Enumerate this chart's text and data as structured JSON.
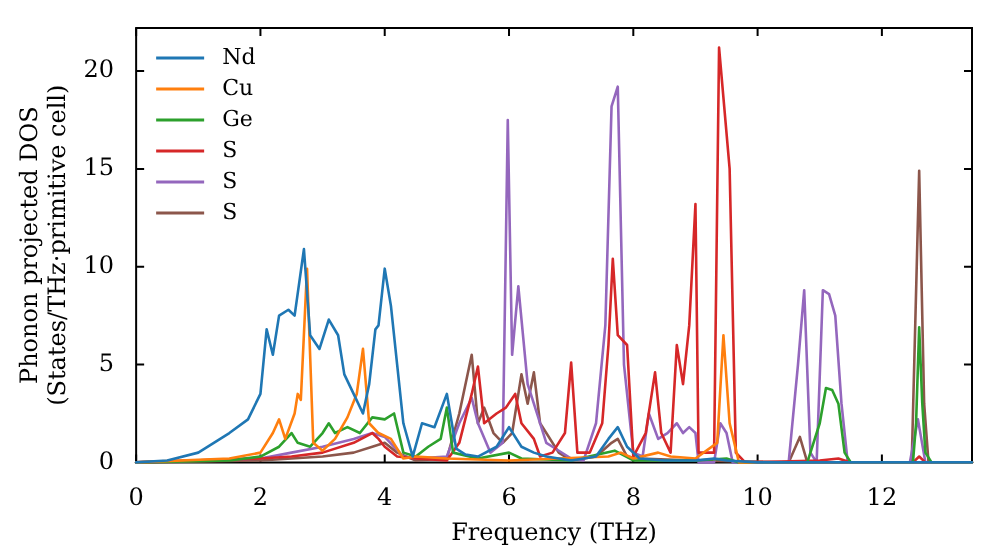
{
  "chart_data": {
    "type": "line",
    "xlabel": "Frequency (THz)",
    "ylabel": "Phonon projected DOS\n(States/THz·primitive cell)",
    "xlim": [
      0,
      13.45
    ],
    "ylim": [
      0,
      22.2
    ],
    "xticks": [
      0,
      2,
      4,
      6,
      8,
      10,
      12
    ],
    "yticks": [
      0,
      5,
      10,
      15,
      20
    ],
    "grid": false,
    "legend": "top left",
    "marker": "none",
    "line_style": "solid",
    "series": [
      {
        "name": "Nd",
        "color": "#1f77b4",
        "x": [
          0,
          0.5,
          1.0,
          1.5,
          1.8,
          2.0,
          2.1,
          2.2,
          2.3,
          2.45,
          2.55,
          2.7,
          2.8,
          2.95,
          3.1,
          3.25,
          3.35,
          3.5,
          3.65,
          3.75,
          3.85,
          3.9,
          4.0,
          4.1,
          4.2,
          4.3,
          4.45,
          4.6,
          4.8,
          5.0,
          5.15,
          5.3,
          5.5,
          5.8,
          6.0,
          6.2,
          6.4,
          6.6,
          6.8,
          7.0,
          7.4,
          7.6,
          7.75,
          7.9,
          8.1,
          8.5,
          9.0,
          9.3,
          9.5,
          10,
          13.45
        ],
        "values": [
          0,
          0.1,
          0.5,
          1.5,
          2.2,
          3.5,
          6.8,
          5.5,
          7.5,
          7.8,
          7.5,
          10.9,
          6.5,
          5.8,
          7.3,
          6.5,
          4.5,
          3.5,
          2.5,
          4,
          6.8,
          7,
          9.9,
          8,
          5,
          2,
          0.3,
          2,
          1.8,
          3.5,
          0.7,
          0.4,
          0.3,
          0.8,
          1.8,
          0.8,
          0.5,
          0.3,
          0.2,
          0.1,
          0.3,
          1.2,
          1.8,
          0.8,
          0.2,
          0.1,
          0.1,
          0.2,
          0.1,
          0,
          0
        ]
      },
      {
        "name": "Cu",
        "color": "#ff7f0e",
        "x": [
          0,
          1.5,
          2.0,
          2.2,
          2.3,
          2.4,
          2.55,
          2.6,
          2.65,
          2.75,
          2.85,
          3.0,
          3.2,
          3.4,
          3.55,
          3.65,
          3.75,
          3.9,
          4.1,
          4.3,
          4.5,
          5,
          6,
          7.6,
          7.8,
          8,
          8.4,
          8.6,
          9.0,
          9.35,
          9.45,
          9.55,
          9.7,
          13.45
        ],
        "values": [
          0,
          0.2,
          0.5,
          1.5,
          2.2,
          1.2,
          2.5,
          3.5,
          3.2,
          9.9,
          1,
          0.6,
          1.2,
          2.3,
          3.5,
          5.8,
          2,
          1.5,
          1.2,
          0.2,
          0.3,
          0.2,
          0.1,
          0.3,
          0.5,
          0.2,
          0.5,
          0.3,
          0.2,
          1,
          6.5,
          2,
          0,
          0
        ]
      },
      {
        "name": "Ge",
        "color": "#2ca02c",
        "x": [
          0,
          1.5,
          2.0,
          2.3,
          2.5,
          2.6,
          2.8,
          3.0,
          3.1,
          3.2,
          3.4,
          3.6,
          3.8,
          4.0,
          4.15,
          4.3,
          4.5,
          4.7,
          4.9,
          5.0,
          5.1,
          5.5,
          6,
          6.2,
          7,
          7.7,
          8,
          9,
          9.5,
          9.7,
          10.8,
          11.0,
          11.1,
          11.2,
          11.3,
          11.4,
          11.5,
          12.5,
          12.55,
          12.6,
          12.65,
          12.7,
          12.8,
          13.45
        ],
        "values": [
          0,
          0.1,
          0.3,
          0.8,
          1.5,
          1,
          0.8,
          1.5,
          2,
          1.5,
          1.8,
          1.5,
          2.3,
          2.2,
          2.5,
          0.5,
          0.3,
          0.8,
          1.2,
          2.8,
          0.5,
          0.2,
          0.5,
          0.2,
          0.1,
          0.6,
          0.1,
          0.1,
          0.2,
          0,
          0,
          2,
          3.8,
          3.7,
          3,
          0.5,
          0,
          0,
          2,
          6.9,
          3,
          0.5,
          0,
          0
        ]
      },
      {
        "name": "S",
        "color": "#d62728",
        "x": [
          0,
          2,
          2.5,
          3.0,
          3.5,
          3.8,
          3.9,
          4.0,
          4.2,
          4.5,
          5.0,
          5.2,
          5.4,
          5.5,
          5.6,
          5.8,
          5.95,
          6.1,
          6.2,
          6.4,
          6.5,
          6.7,
          6.9,
          7.0,
          7.1,
          7.3,
          7.5,
          7.6,
          7.67,
          7.75,
          7.9,
          8.0,
          8.2,
          8.35,
          8.45,
          8.6,
          8.7,
          8.8,
          8.9,
          9.0,
          9.05,
          9.3,
          9.38,
          9.55,
          9.65,
          9.8,
          11,
          11.3,
          11.5,
          12.5,
          12.6,
          12.7,
          13.45
        ],
        "values": [
          0,
          0.2,
          0.3,
          0.5,
          1,
          1.5,
          1.2,
          0.8,
          0.3,
          0.2,
          0.1,
          1,
          3.5,
          4.9,
          2,
          2.5,
          2.8,
          3.5,
          2,
          1.2,
          0.3,
          0.5,
          1.5,
          5.1,
          0.5,
          0.5,
          2,
          6,
          10.4,
          6.5,
          6,
          0.3,
          1.5,
          4.6,
          1.5,
          0.5,
          6,
          4,
          7,
          13.2,
          0.5,
          0.5,
          21.2,
          15,
          0.5,
          0,
          0.1,
          0.2,
          0,
          0,
          0.3,
          0,
          0
        ]
      },
      {
        "name": "S",
        "color": "#9467bd",
        "x": [
          0,
          2,
          2.5,
          3.0,
          3.5,
          3.8,
          4.0,
          4.3,
          4.5,
          5.0,
          5.2,
          5.4,
          5.5,
          5.7,
          5.9,
          5.98,
          6.05,
          6.15,
          6.3,
          6.45,
          6.6,
          6.7,
          7.0,
          7.2,
          7.4,
          7.55,
          7.65,
          7.75,
          7.85,
          8.0,
          8.15,
          8.25,
          8.4,
          8.55,
          8.7,
          8.8,
          8.9,
          9.0,
          9.05,
          9.3,
          9.4,
          9.5,
          9.6,
          10.5,
          10.65,
          10.75,
          10.85,
          10.95,
          11.05,
          11.15,
          11.25,
          11.35,
          11.45,
          12.45,
          12.58,
          12.7,
          13.45
        ],
        "values": [
          0,
          0.2,
          0.5,
          0.8,
          1.2,
          1.5,
          1.3,
          0.3,
          0.2,
          0.3,
          2,
          3.3,
          2,
          0.5,
          1,
          17.5,
          5.5,
          9,
          4,
          2.5,
          1,
          0.8,
          0.2,
          0.1,
          2,
          7,
          18.2,
          19.2,
          5,
          0.5,
          0.3,
          2.5,
          1.2,
          1.5,
          2,
          1.5,
          1.8,
          1.5,
          0,
          0,
          2,
          1.5,
          0,
          0,
          5,
          8.8,
          0.5,
          0,
          8.8,
          8.6,
          7.5,
          3,
          0,
          0,
          2.2,
          0,
          0
        ]
      },
      {
        "name": "S",
        "color": "#8c564b",
        "x": [
          0,
          2,
          3,
          3.5,
          3.8,
          4.0,
          4.2,
          4.5,
          5.0,
          5.2,
          5.4,
          5.5,
          5.6,
          5.75,
          5.9,
          6.05,
          6.2,
          6.3,
          6.4,
          6.5,
          6.6,
          6.8,
          7.0,
          7.4,
          7.65,
          7.75,
          7.9,
          8.1,
          9.0,
          10.5,
          10.68,
          10.8,
          12.48,
          12.6,
          12.68,
          12.75,
          13.45
        ],
        "values": [
          0,
          0.1,
          0.3,
          0.5,
          0.8,
          1,
          0.5,
          0.1,
          0.2,
          2.5,
          5.5,
          2,
          2.8,
          1.5,
          1,
          1.5,
          4.5,
          3,
          4.6,
          2,
          1.5,
          0.5,
          0.1,
          0.3,
          1,
          1.2,
          0.3,
          0.2,
          0.1,
          0,
          1.3,
          0,
          0,
          14.9,
          3,
          0,
          0
        ]
      }
    ]
  }
}
